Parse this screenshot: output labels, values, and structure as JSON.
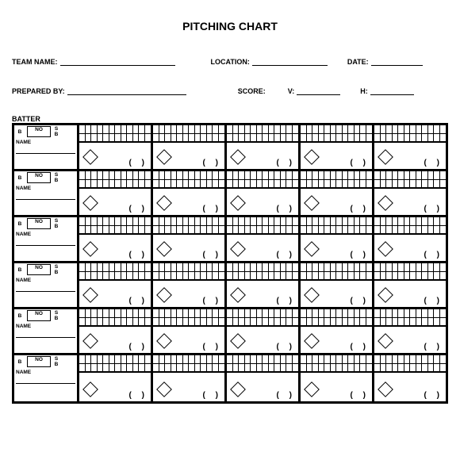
{
  "title": "PITCHING CHART",
  "header1": {
    "team_name_label": "TEAM NAME:",
    "location_label": "LOCATION:",
    "date_label": "DATE:"
  },
  "header2": {
    "prepared_by_label": "PREPARED BY:",
    "score_label": "SCORE:",
    "v_label": "V:",
    "h_label": "H:"
  },
  "batter_label": "BATTER",
  "batter_cell": {
    "b": "B",
    "no": "NO",
    "s": "S",
    "b2": "B",
    "name": "NAME"
  },
  "paren": "( )",
  "layout": {
    "rows": 6,
    "pitch_cols": 5,
    "grid_cols": 12,
    "grid_rows": 2,
    "line_widths": {
      "team_name": 145,
      "location": 95,
      "date": 65,
      "prepared_by": 150,
      "v": 55,
      "h": 55
    },
    "colors": {
      "background": "#ffffff",
      "text": "#000000",
      "border": "#000000"
    }
  }
}
